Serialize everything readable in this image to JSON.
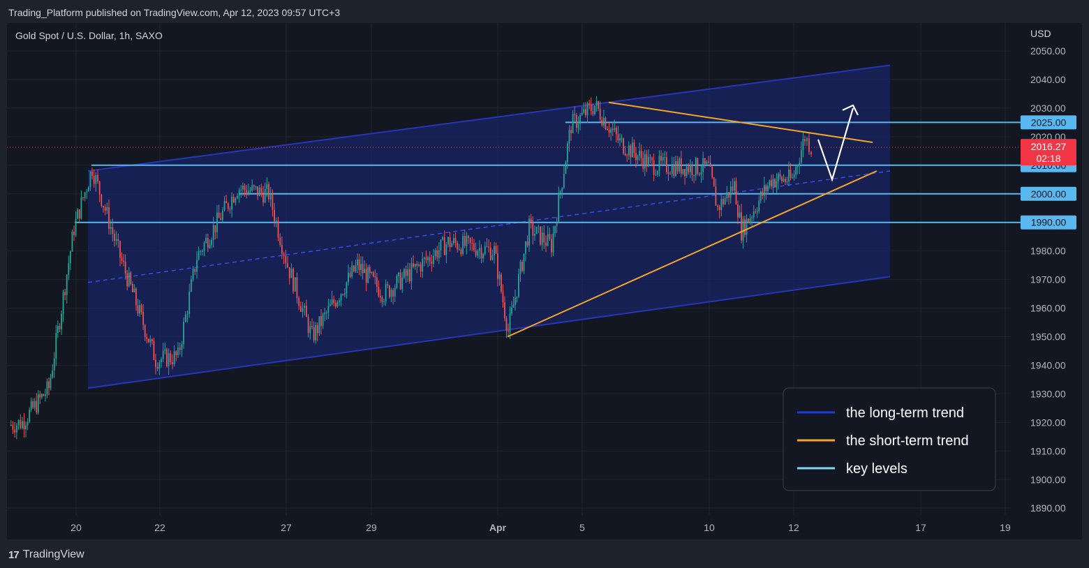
{
  "header": {
    "published_text": "Trading_Platform published on TradingView.com, Apr 12, 2023 09:57 UTC+3"
  },
  "footer": {
    "brand_logo": "17",
    "brand_name": "TradingView"
  },
  "colors": {
    "background": "#131722",
    "channel_fill": "#1a2463",
    "channel_line": "#2636b8",
    "short_trend": "#f5a623",
    "key_level": "#5ab8f0",
    "up_candle": "#26a69a",
    "down_candle": "#ef5350",
    "price_badge": "#f23645",
    "annotation_arrow": "#ffffff"
  },
  "chart_data": {
    "type": "candlestick",
    "title": "Gold Spot / U.S. Dollar, 1h, SAXO",
    "currency_label": "USD",
    "y_ticks": [
      "2050.00",
      "2040.00",
      "2030.00",
      "2020.00",
      "2010.00",
      "2000.00",
      "1990.00",
      "1980.00",
      "1970.00",
      "1960.00",
      "1950.00",
      "1940.00",
      "1930.00",
      "1920.00",
      "1910.00",
      "1900.00",
      "1890.00"
    ],
    "x_ticks": [
      "20",
      "22",
      "27",
      "29",
      "Apr",
      "5",
      "10",
      "12",
      "17",
      "19"
    ],
    "ylim": [
      1886,
      2055
    ],
    "grid": true,
    "current_price": {
      "value": "2016.27",
      "countdown": "02:18"
    },
    "key_levels": [
      {
        "label": "2025.00",
        "value": 2025
      },
      {
        "label": "2010.00",
        "value": 2010
      },
      {
        "label": "2000.00",
        "value": 2000
      },
      {
        "label": "1990.00",
        "value": 1990
      }
    ],
    "price_path": [
      {
        "t": "Mar 17",
        "price": 1919
      },
      {
        "t": "Mar 18",
        "price": 1920
      },
      {
        "t": "Mar 19",
        "price": 1932
      },
      {
        "t": "Mar 20",
        "price": 1988
      },
      {
        "t": "Mar 20",
        "price": 2009
      },
      {
        "t": "Mar 21",
        "price": 1978
      },
      {
        "t": "Mar 22",
        "price": 1942
      },
      {
        "t": "Mar 23",
        "price": 1943
      },
      {
        "t": "Mar 23",
        "price": 1978
      },
      {
        "t": "Mar 24",
        "price": 2002
      },
      {
        "t": "Mar 26",
        "price": 2000
      },
      {
        "t": "Mar 27",
        "price": 1975
      },
      {
        "t": "Mar 28",
        "price": 1950
      },
      {
        "t": "Mar 29",
        "price": 1975
      },
      {
        "t": "Mar 30",
        "price": 1965
      },
      {
        "t": "Mar 31",
        "price": 1983
      },
      {
        "t": "Apr 1",
        "price": 1980
      },
      {
        "t": "Apr 1",
        "price": 1952
      },
      {
        "t": "Apr 3",
        "price": 1988
      },
      {
        "t": "Apr 4",
        "price": 1982
      },
      {
        "t": "Apr 4",
        "price": 2024
      },
      {
        "t": "Apr 5",
        "price": 2031
      },
      {
        "t": "Apr 6",
        "price": 2018
      },
      {
        "t": "Apr 7",
        "price": 2010
      },
      {
        "t": "Apr 9",
        "price": 2009
      },
      {
        "t": "Apr 10",
        "price": 1995
      },
      {
        "t": "Apr 10",
        "price": 2003
      },
      {
        "t": "Apr 11",
        "price": 1987
      },
      {
        "t": "Apr 11",
        "price": 2005
      },
      {
        "t": "Apr 12",
        "price": 2005
      },
      {
        "t": "Apr 12",
        "price": 2020
      },
      {
        "t": "Apr 12",
        "price": 2016.27
      }
    ],
    "annotations": {
      "long_term_channel": {
        "upper": [
          {
            "t": "Mar 20",
            "price": 2008
          },
          {
            "t": "Apr 15",
            "price": 2045
          }
        ],
        "lower": [
          {
            "t": "Mar 20",
            "price": 1932
          },
          {
            "t": "Apr 15",
            "price": 1971
          }
        ],
        "middle": [
          {
            "t": "Mar 20",
            "price": 1969
          },
          {
            "t": "Apr 15",
            "price": 2008
          }
        ]
      },
      "short_term_trend": {
        "falling": [
          {
            "t": "Apr 5",
            "price": 2032
          },
          {
            "t": "Apr 14",
            "price": 2018
          }
        ],
        "rising": [
          {
            "t": "Apr 1",
            "price": 1950
          },
          {
            "t": "Apr 14",
            "price": 2008
          }
        ]
      },
      "projection_arrow": [
        {
          "t": "Apr 12",
          "price": 2019
        },
        {
          "t": "Apr 13",
          "price": 2005
        },
        {
          "t": "Apr 13",
          "price": 2030
        }
      ]
    },
    "legend": {
      "position": "bottom-right",
      "items": [
        {
          "label": "the long-term trend",
          "color": "#1a3ae0"
        },
        {
          "label": "the short-term trend",
          "color": "#f5a623"
        },
        {
          "label": "key levels",
          "color": "#7fd8f0"
        }
      ]
    }
  }
}
